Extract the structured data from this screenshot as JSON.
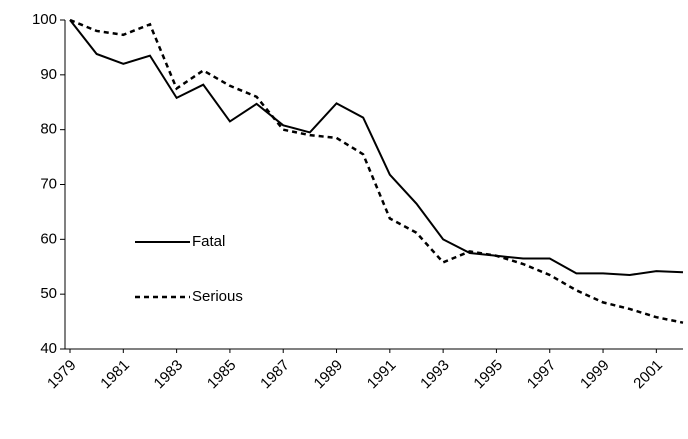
{
  "chart_data": {
    "type": "line",
    "x": [
      1979,
      1980,
      1981,
      1982,
      1983,
      1984,
      1985,
      1986,
      1987,
      1988,
      1989,
      1990,
      1991,
      1992,
      1993,
      1994,
      1995,
      1996,
      1997,
      1998,
      1999,
      2000,
      2001,
      2002
    ],
    "series": [
      {
        "name": "Fatal",
        "color": "#000000",
        "dash": "solid",
        "values": [
          100,
          93.8,
          92,
          93.5,
          85.8,
          88.2,
          81.5,
          84.7,
          80.8,
          79.5,
          84.8,
          82.2,
          71.8,
          66.5,
          60,
          57.5,
          57,
          56.5,
          56.5,
          53.8,
          53.8,
          53.5,
          54.2,
          54
        ]
      },
      {
        "name": "Serious",
        "color": "#000000",
        "dash": "dashed",
        "values": [
          100,
          98,
          97.3,
          99.2,
          87.5,
          90.8,
          88,
          86,
          80,
          79,
          78.5,
          75.5,
          63.8,
          61.2,
          55.8,
          57.8,
          57,
          55.5,
          53.5,
          50.7,
          48.5,
          47.3,
          45.8,
          44.8
        ]
      }
    ],
    "xlim": [
      1979,
      2002
    ],
    "xticks": [
      1979,
      1981,
      1983,
      1985,
      1987,
      1989,
      1991,
      1993,
      1995,
      1997,
      1999,
      2001
    ],
    "ylim": [
      40,
      100
    ],
    "yticks": [
      40,
      50,
      60,
      70,
      80,
      90,
      100
    ],
    "grid": false,
    "legend": "center-left"
  }
}
